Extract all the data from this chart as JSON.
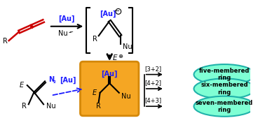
{
  "bg_color": "#ffffff",
  "allene_color": "#cc0000",
  "au_color": "#1a1aff",
  "text_color": "#000000",
  "arrow_color": "#000000",
  "dashed_arrow_color": "#1a1aff",
  "ellipse_fill": "#7fffd4",
  "ellipse_stroke": "#20b2aa",
  "orange_fill": "#f5a623",
  "orange_stroke": "#d4880a",
  "ring_labels": [
    "five-membered\nring",
    "six-membered\nring",
    "seven-membered\nring"
  ],
  "cyclo_labels": [
    "[3+2]",
    "[4+2]",
    "[4+3]"
  ],
  "figsize": [
    3.68,
    1.89
  ],
  "dpi": 100
}
